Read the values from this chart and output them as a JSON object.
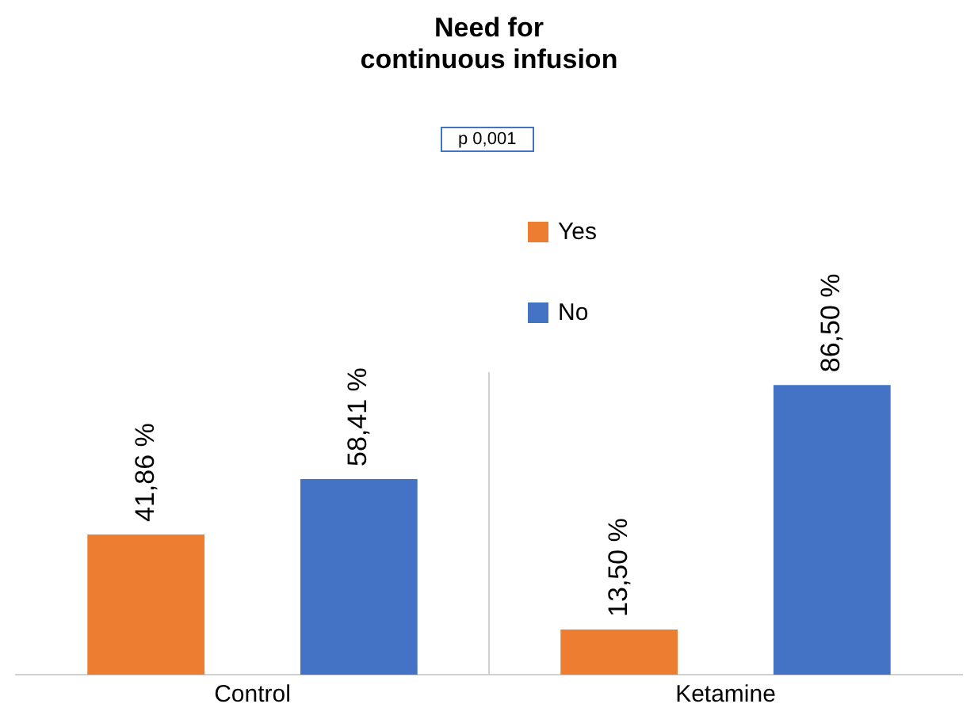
{
  "chart_data": {
    "type": "bar",
    "title": "Need for\ncontinuous infusion",
    "annotations": [
      "p 0,001"
    ],
    "categories": [
      "Control",
      "Ketamine"
    ],
    "legend": "top",
    "series": [
      {
        "name": "Yes",
        "color": "#ed7d31",
        "values": [
          41.86,
          13.5
        ],
        "value_labels": [
          "41,86 %",
          "13,50 %"
        ]
      },
      {
        "name": "No",
        "color": "#4472c4",
        "values": [
          58.41,
          86.5
        ],
        "value_labels": [
          "58,41 %",
          "86,50 %"
        ]
      }
    ]
  }
}
